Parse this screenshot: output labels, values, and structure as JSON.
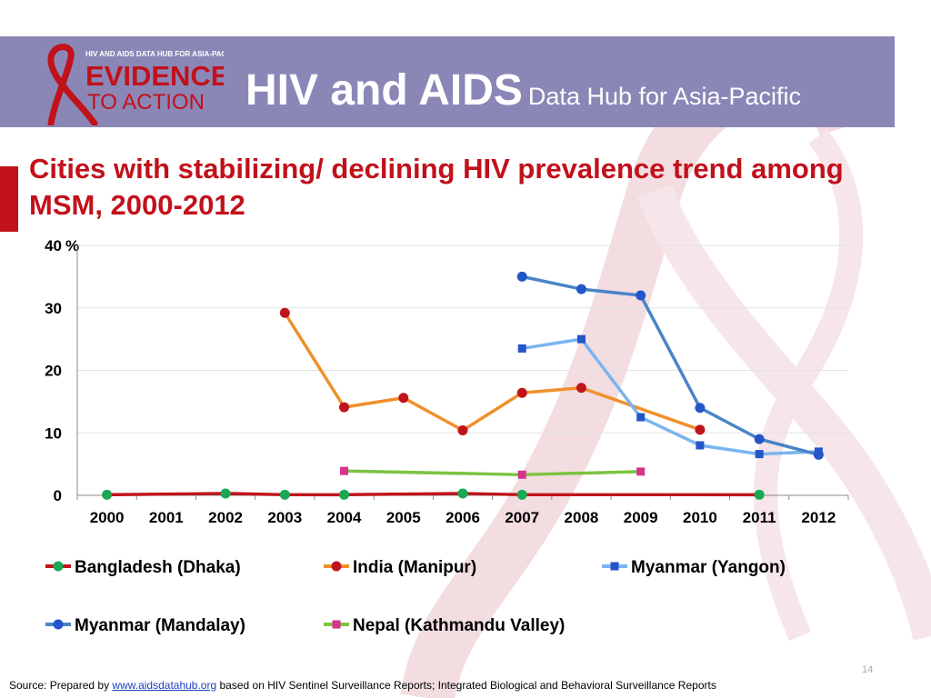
{
  "header": {
    "logo": {
      "tagline": "HIV AND AIDS DATA HUB FOR ASIA-PACIFIC",
      "line1": "EVIDENCE",
      "line2": "TO ACTION"
    },
    "title_main": "HIV and AIDS",
    "title_sub": "Data Hub for Asia-Pacific"
  },
  "slide": {
    "title": "Cities with stabilizing/ declining HIV prevalence trend among MSM, 2000-2012",
    "page_number": "14"
  },
  "source": {
    "prefix": "Source: Prepared by",
    "link": "www.aidsdatahub.org",
    "suffix": "based on HIV Sentinel Surveillance Reports; Integrated Biological and Behavioral Surveillance Reports"
  },
  "colors": {
    "header_band": "#8a87b7",
    "title_red": "#c1111b",
    "ribbon_pink": "#f3dde1"
  },
  "chart_data": {
    "type": "line",
    "title": "Cities with stabilizing/ declining HIV prevalence trend among MSM, 2000-2012",
    "ylabel": "%",
    "xlabel": "",
    "ylim": [
      0,
      40
    ],
    "yticks": [
      0,
      10,
      20,
      30,
      40
    ],
    "grid": true,
    "legend_position": "bottom",
    "categories": [
      "2000",
      "2001",
      "2002",
      "2003",
      "2004",
      "2005",
      "2006",
      "2007",
      "2008",
      "2009",
      "2010",
      "2011",
      "2012"
    ],
    "series": [
      {
        "name": "Bangladesh (Dhaka)",
        "line_color": "#c0141c",
        "marker_color": "#1aa852",
        "marker": "circle",
        "values": [
          0.1,
          null,
          0.3,
          0.1,
          0.1,
          null,
          0.3,
          0.1,
          null,
          null,
          null,
          0.1,
          null
        ]
      },
      {
        "name": "India (Manipur)",
        "line_color": "#f0902c",
        "marker_color": "#c0141c",
        "marker": "circle",
        "values": [
          null,
          null,
          null,
          29.2,
          14.1,
          15.6,
          10.4,
          16.4,
          17.2,
          null,
          10.5,
          null,
          null
        ]
      },
      {
        "name": "Myanmar (Yangon)",
        "line_color": "#7ab4f0",
        "marker_color": "#2356c8",
        "marker": "square",
        "values": [
          null,
          null,
          null,
          null,
          null,
          null,
          null,
          23.5,
          25.0,
          12.5,
          8.0,
          6.6,
          7.0
        ]
      },
      {
        "name": "Myanmar (Mandalay)",
        "line_color": "#4a84c8",
        "marker_color": "#2356c8",
        "marker": "circle",
        "values": [
          null,
          null,
          null,
          null,
          null,
          null,
          null,
          35.0,
          33.0,
          32.0,
          14.0,
          9.0,
          6.5
        ]
      },
      {
        "name": "Nepal (Kathmandu Valley)",
        "line_color": "#7cc440",
        "marker_color": "#d6338c",
        "marker": "square",
        "values": [
          null,
          null,
          null,
          null,
          3.9,
          null,
          null,
          3.3,
          null,
          3.8,
          null,
          null,
          null
        ]
      }
    ]
  }
}
